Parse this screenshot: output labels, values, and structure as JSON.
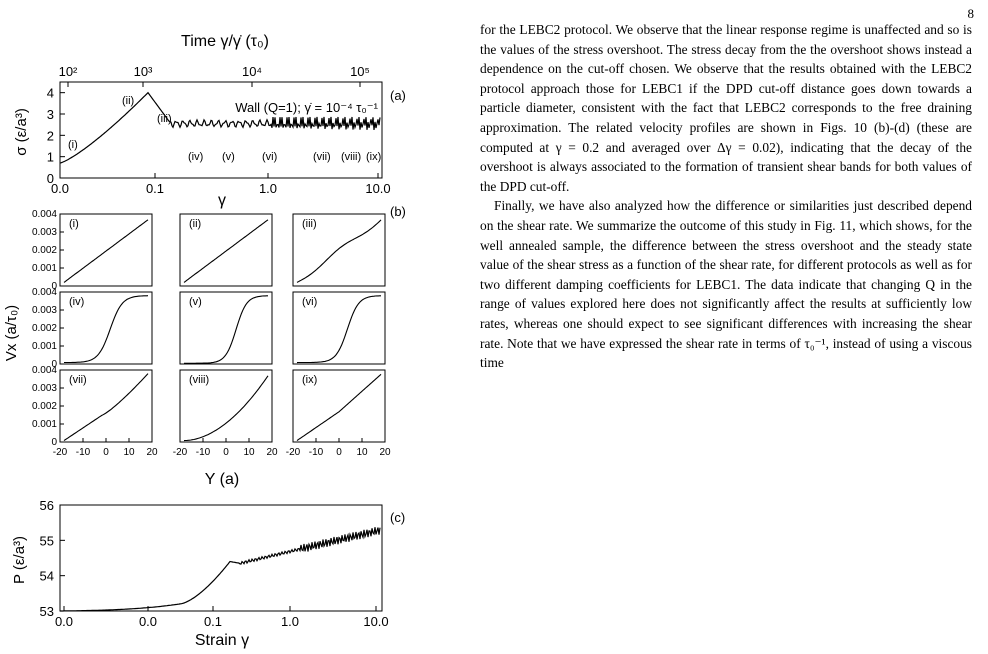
{
  "page_number": "8",
  "figure": {
    "panel_a": {
      "label": "(a)",
      "top_axis_label": "Time γ/γ̇ (τ₀)",
      "top_ticks": [
        "10²",
        "10³",
        "10⁴",
        "10⁵"
      ],
      "ylabel": "σ (ε/a³)",
      "yticks": [
        "0",
        "1",
        "2",
        "3",
        "4"
      ],
      "xticks": [
        "0.0",
        "0.1",
        "1.0",
        "10.0"
      ],
      "xlabel": "γ",
      "annotation": "Wall (Q=1); γ̇ = 10⁻⁴ τ₀⁻¹",
      "stage_labels": [
        "(i)",
        "(ii)",
        "(iii)",
        "(iv)",
        "(v)",
        "(vi)",
        "(vii)",
        "(viii)",
        "(ix)"
      ]
    },
    "panel_b": {
      "label": "(b)",
      "ylabel": "Vx (a/τ₀)",
      "yticks": [
        "0",
        "0.001",
        "0.002",
        "0.003",
        "0.004"
      ],
      "xticks": [
        "-20",
        "-10",
        "0",
        "10",
        "20"
      ],
      "xlabel": "Y (a)",
      "subpanels": [
        "(i)",
        "(ii)",
        "(iii)",
        "(iv)",
        "(v)",
        "(vi)",
        "(vii)",
        "(viii)",
        "(ix)"
      ]
    },
    "panel_c": {
      "label": "(c)",
      "ylabel": "P (ε/a³)",
      "yticks": [
        "53",
        "54",
        "55",
        "56"
      ],
      "xticks": [
        "0.0",
        "0.0",
        "0.1",
        "1.0",
        "10.0"
      ],
      "xlabel": "Strain γ"
    }
  },
  "text": {
    "paragraph1": "for the LEBC2 protocol. We observe that the linear response regime is unaffected and so is the values of the stress overshoot. The stress decay from the the overshoot shows instead a dependence on the cut-off chosen. We observe that the results obtained with the LEBC2 protocol approach those for LEBC1 if the DPD cut-off distance goes down towards a particle diameter, consistent with the fact that LEBC2 corresponds to the free draining approximation. The related velocity profiles are shown in Figs. 10 (b)-(d) (these are computed at γ = 0.2 and averaged over Δγ = 0.02), indicating that the decay of the overshoot is always associated to the formation of transient shear bands for both values of the DPD cut-off.",
    "paragraph2": "Finally, we have also analyzed how the difference or similarities just described depend on the shear rate. We summarize the outcome of this study in Fig. 11, which shows, for the well annealed sample, the difference between the stress overshoot and the steady state value of the shear stress as a function of the shear rate, for different protocols as well as for two different damping coefficients for LEBC1. The data indicate that changing Q in the range of values explored here does not significantly affect the results at sufficiently low rates, whereas one should expect to see significant differences with increasing the shear rate. Note that we have expressed the shear rate in terms of τ₀⁻¹, instead of using a viscous time"
  }
}
